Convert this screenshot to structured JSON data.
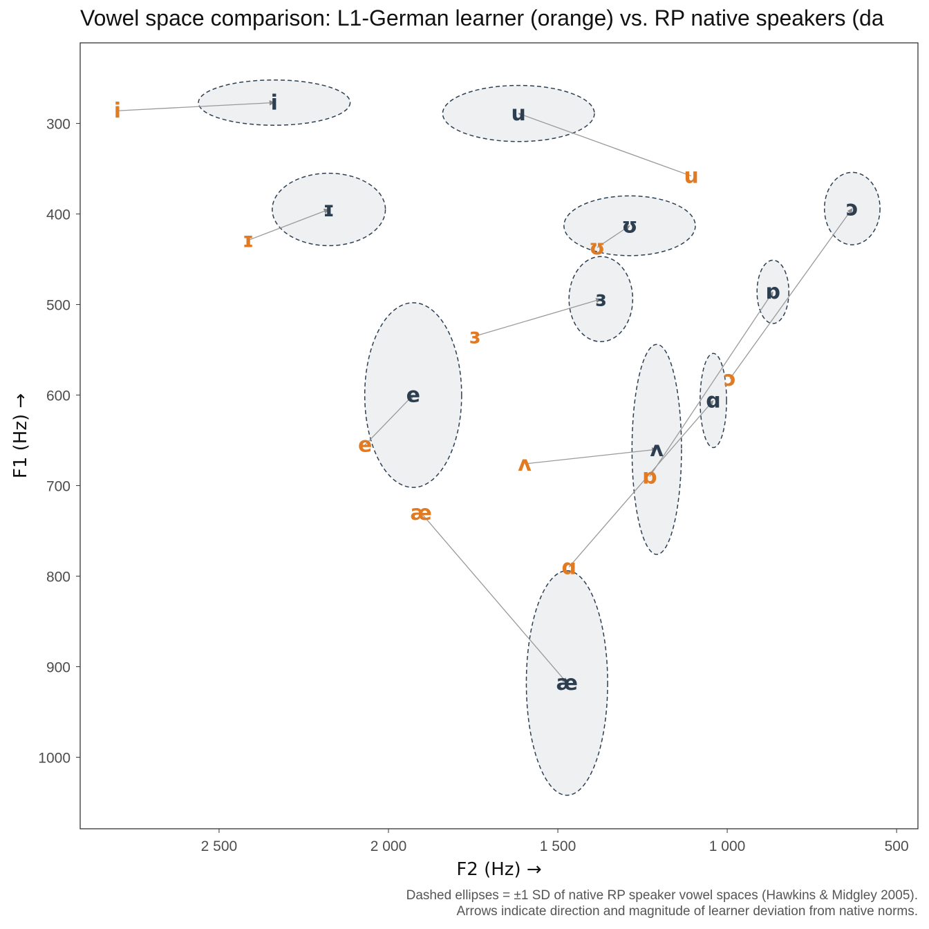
{
  "chart_data": {
    "type": "scatter",
    "title": "Vowel space comparison: L1-German learner (orange) vs. RP native speakers (da",
    "xlabel": "F2 (Hz) →",
    "ylabel": "F1 (Hz) →",
    "xlim": [
      2910,
      437
    ],
    "ylim": [
      211,
      1079
    ],
    "x_reversed": true,
    "y_reversed": true,
    "x_ticks": [
      2500,
      2000,
      1500,
      1000,
      500
    ],
    "x_tick_labels": [
      "2 500",
      "2 000",
      "1 500",
      "1 000",
      "500"
    ],
    "y_ticks": [
      300,
      400,
      500,
      600,
      700,
      800,
      900,
      1000
    ],
    "y_tick_labels": [
      "300",
      "400",
      "500",
      "600",
      "700",
      "800",
      "900",
      "1000"
    ],
    "grid": false,
    "colors": {
      "learner": "#E07B24",
      "native": "#2C3E50",
      "ellipse_fill": "#EEF0F2",
      "arrow": "#999999"
    },
    "native": [
      {
        "vowel": "i",
        "F2": 2337,
        "F1": 277,
        "sdF2": 224,
        "sdF1": 25
      },
      {
        "vowel": "u",
        "F2": 1616,
        "F1": 289,
        "sdF2": 224,
        "sdF1": 31
      },
      {
        "vowel": "ɪ",
        "F2": 2176,
        "F1": 395,
        "sdF2": 167,
        "sdF1": 40
      },
      {
        "vowel": "ʊ",
        "F2": 1288,
        "F1": 413,
        "sdF2": 194,
        "sdF1": 33
      },
      {
        "vowel": "ɔ",
        "F2": 631,
        "F1": 394,
        "sdF2": 82,
        "sdF1": 40
      },
      {
        "vowel": "ɜ",
        "F2": 1373,
        "F1": 494,
        "sdF2": 94,
        "sdF1": 47
      },
      {
        "vowel": "ɒ",
        "F2": 865,
        "F1": 486,
        "sdF2": 47,
        "sdF1": 35
      },
      {
        "vowel": "e",
        "F2": 1927,
        "F1": 600,
        "sdF2": 143,
        "sdF1": 102
      },
      {
        "vowel": "ɑ",
        "F2": 1041,
        "F1": 606,
        "sdF2": 39,
        "sdF1": 52
      },
      {
        "vowel": "ʌ",
        "F2": 1208,
        "F1": 660,
        "sdF2": 73,
        "sdF1": 116
      },
      {
        "vowel": "æ",
        "F2": 1473,
        "F1": 918,
        "sdF2": 120,
        "sdF1": 124
      }
    ],
    "learner": [
      {
        "vowel": "i",
        "F2": 2800,
        "F1": 286
      },
      {
        "vowel": "u",
        "F2": 1106,
        "F1": 358
      },
      {
        "vowel": "ɪ",
        "F2": 2414,
        "F1": 429
      },
      {
        "vowel": "ʊ",
        "F2": 1384,
        "F1": 437
      },
      {
        "vowel": "ɔ",
        "F2": 992,
        "F1": 582
      },
      {
        "vowel": "ɜ",
        "F2": 1745,
        "F1": 535
      },
      {
        "vowel": "ɒ",
        "F2": 1229,
        "F1": 690
      },
      {
        "vowel": "e",
        "F2": 2069,
        "F1": 655
      },
      {
        "vowel": "ɑ",
        "F2": 1467,
        "F1": 790
      },
      {
        "vowel": "ʌ",
        "F2": 1598,
        "F1": 676
      },
      {
        "vowel": "æ",
        "F2": 1904,
        "F1": 730
      }
    ]
  },
  "caption": {
    "line1": "Dashed ellipses = ±1 SD of native RP speaker vowel spaces (Hawkins & Midgley 2005).",
    "line2": "Arrows indicate direction and magnitude of learner deviation from native norms."
  }
}
